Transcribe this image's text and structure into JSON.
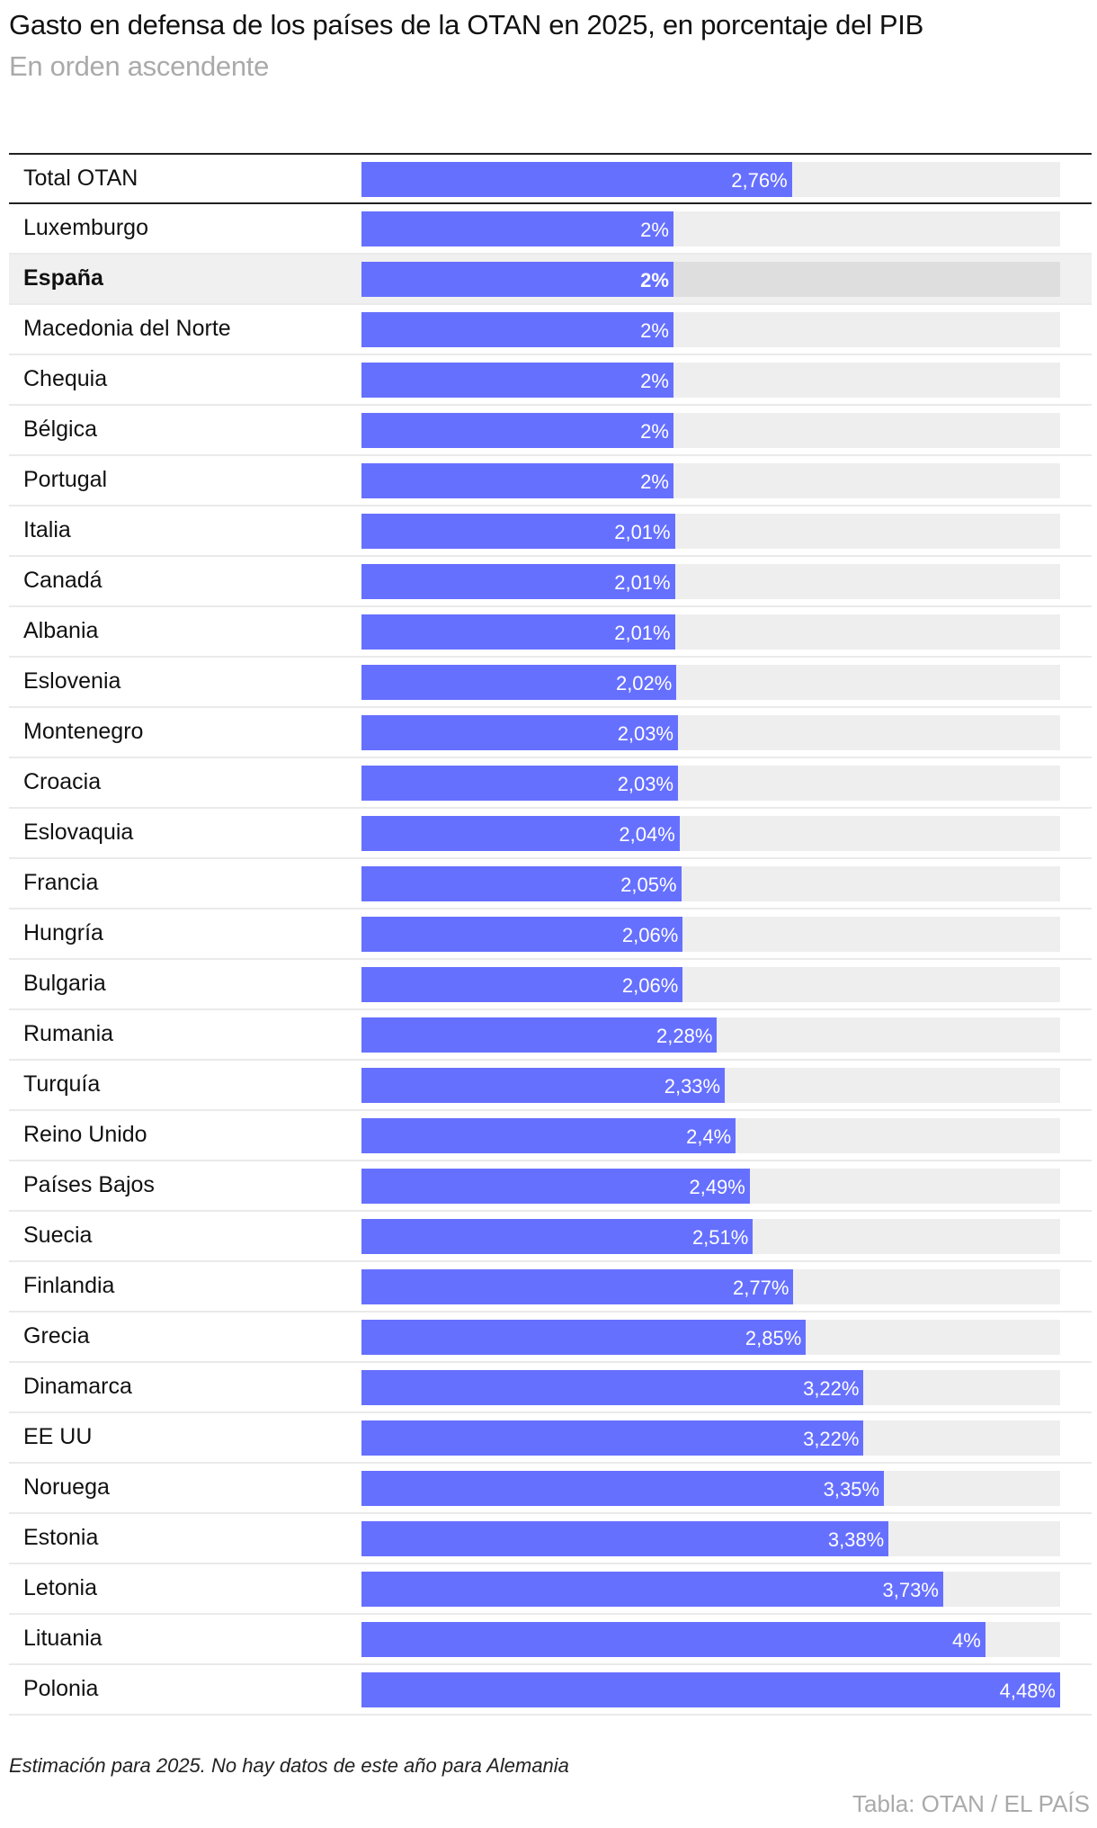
{
  "title": "Gasto en defensa de los países de la OTAN en 2025, en porcentaje del PIB",
  "subtitle": "En orden ascendente",
  "note": "Estimación para 2025. No hay datos de este año para Alemania",
  "source": "Tabla: OTAN / EL PAÍS",
  "colors": {
    "bar": "#6670ff",
    "track": "#eeeeee",
    "highlight_row": "#f0f0f0"
  },
  "chart_data": {
    "type": "bar",
    "orientation": "horizontal",
    "title": "Gasto en defensa de los países de la OTAN en 2025, en porcentaje del PIB",
    "subtitle": "En orden ascendente",
    "xlim": [
      0,
      4.48
    ],
    "highlight": "España",
    "total": {
      "label": "Total OTAN",
      "value": 2.76,
      "value_label": "2,76%"
    },
    "rows": [
      {
        "label": "Luxemburgo",
        "value": 2.0,
        "value_label": "2%"
      },
      {
        "label": "España",
        "value": 2.0,
        "value_label": "2%"
      },
      {
        "label": "Macedonia del Norte",
        "value": 2.0,
        "value_label": "2%"
      },
      {
        "label": "Chequia",
        "value": 2.0,
        "value_label": "2%"
      },
      {
        "label": "Bélgica",
        "value": 2.0,
        "value_label": "2%"
      },
      {
        "label": "Portugal",
        "value": 2.0,
        "value_label": "2%"
      },
      {
        "label": "Italia",
        "value": 2.01,
        "value_label": "2,01%"
      },
      {
        "label": "Canadá",
        "value": 2.01,
        "value_label": "2,01%"
      },
      {
        "label": "Albania",
        "value": 2.01,
        "value_label": "2,01%"
      },
      {
        "label": "Eslovenia",
        "value": 2.02,
        "value_label": "2,02%"
      },
      {
        "label": "Montenegro",
        "value": 2.03,
        "value_label": "2,03%"
      },
      {
        "label": "Croacia",
        "value": 2.03,
        "value_label": "2,03%"
      },
      {
        "label": "Eslovaquia",
        "value": 2.04,
        "value_label": "2,04%"
      },
      {
        "label": "Francia",
        "value": 2.05,
        "value_label": "2,05%"
      },
      {
        "label": "Hungría",
        "value": 2.06,
        "value_label": "2,06%"
      },
      {
        "label": "Bulgaria",
        "value": 2.06,
        "value_label": "2,06%"
      },
      {
        "label": "Rumania",
        "value": 2.28,
        "value_label": "2,28%"
      },
      {
        "label": "Turquía",
        "value": 2.33,
        "value_label": "2,33%"
      },
      {
        "label": "Reino Unido",
        "value": 2.4,
        "value_label": "2,4%"
      },
      {
        "label": "Países Bajos",
        "value": 2.49,
        "value_label": "2,49%"
      },
      {
        "label": "Suecia",
        "value": 2.51,
        "value_label": "2,51%"
      },
      {
        "label": "Finlandia",
        "value": 2.77,
        "value_label": "2,77%"
      },
      {
        "label": "Grecia",
        "value": 2.85,
        "value_label": "2,85%"
      },
      {
        "label": "Dinamarca",
        "value": 3.22,
        "value_label": "3,22%"
      },
      {
        "label": "EE UU",
        "value": 3.22,
        "value_label": "3,22%"
      },
      {
        "label": "Noruega",
        "value": 3.35,
        "value_label": "3,35%"
      },
      {
        "label": "Estonia",
        "value": 3.38,
        "value_label": "3,38%"
      },
      {
        "label": "Letonia",
        "value": 3.73,
        "value_label": "3,73%"
      },
      {
        "label": "Lituania",
        "value": 4.0,
        "value_label": "4%"
      },
      {
        "label": "Polonia",
        "value": 4.48,
        "value_label": "4,48%"
      }
    ]
  }
}
